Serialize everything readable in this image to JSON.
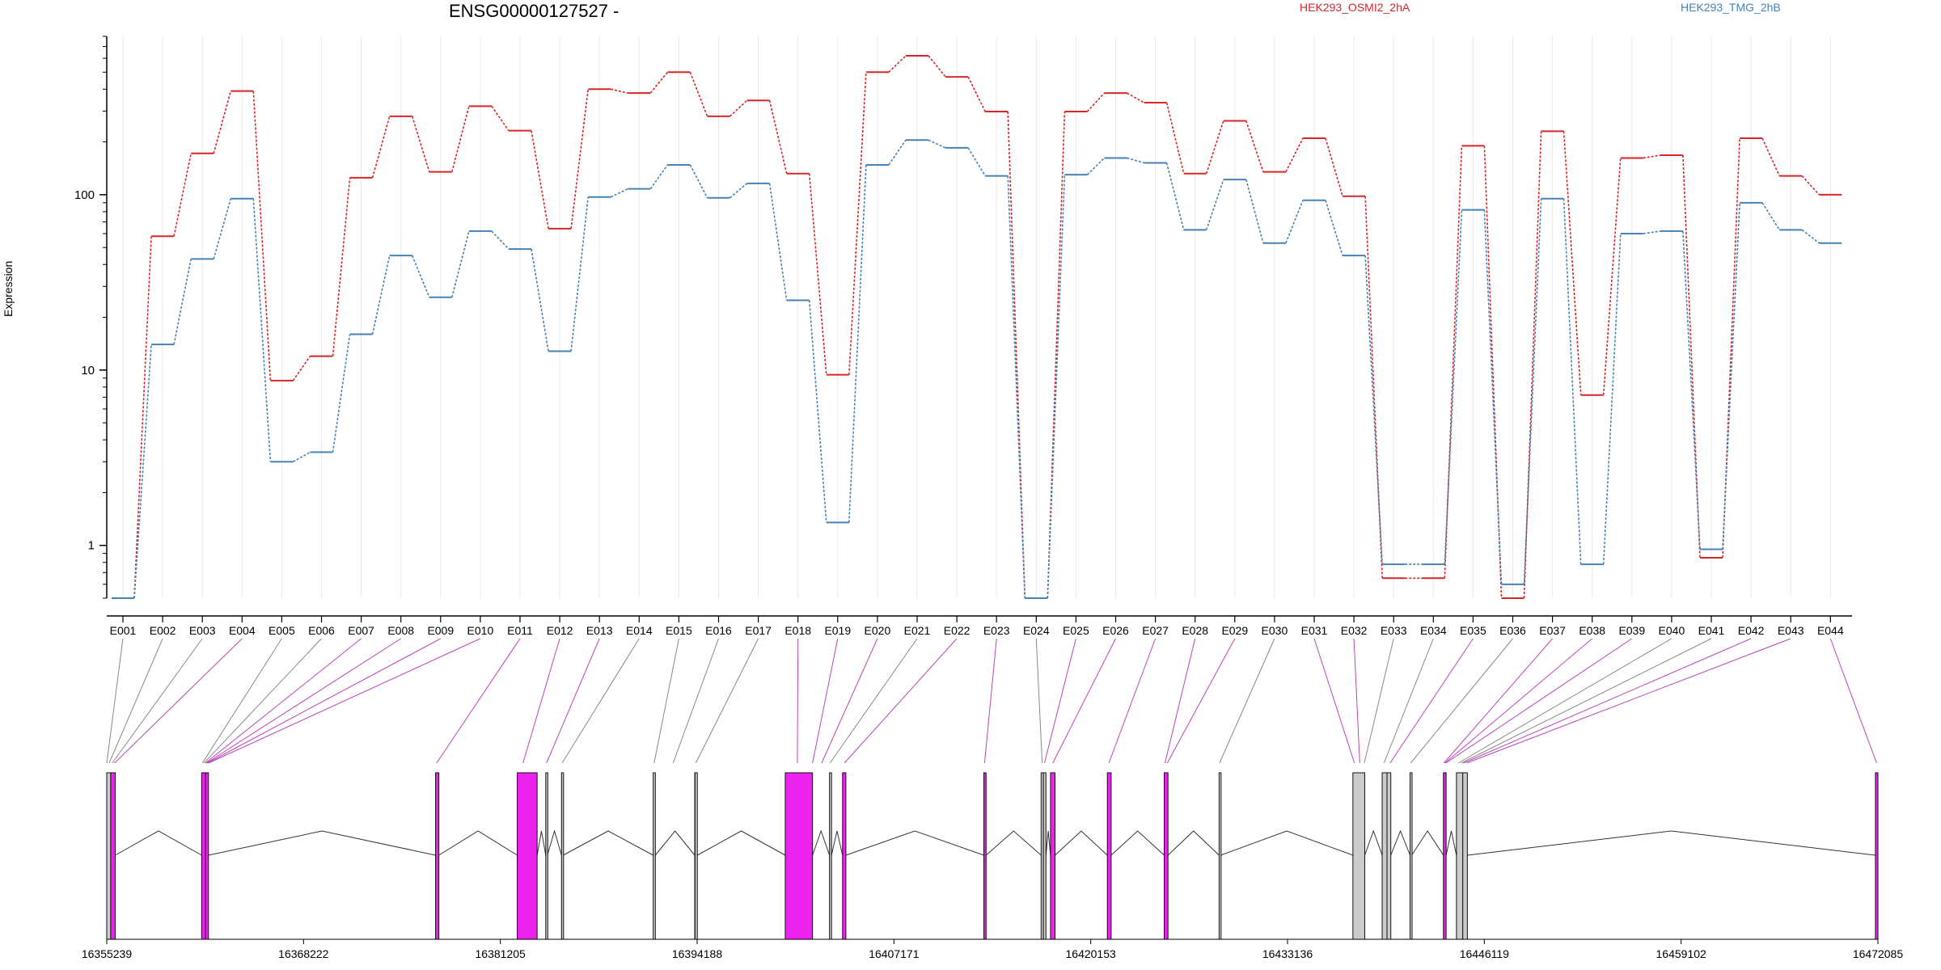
{
  "chart_data": {
    "type": "line",
    "title": "ENSG00000127527 -",
    "ylabel": "Expression",
    "xlabel": "",
    "yscale": "log",
    "ylim": [
      0.5,
      800
    ],
    "yticks": [
      1,
      10,
      100
    ],
    "ytick_labels": [
      "1",
      "10",
      "100"
    ],
    "grid": "vertical",
    "legend": "top-right",
    "categories": [
      "E001",
      "E002",
      "E003",
      "E004",
      "E005",
      "E006",
      "E007",
      "E008",
      "E009",
      "E010",
      "E011",
      "E012",
      "E013",
      "E014",
      "E015",
      "E016",
      "E017",
      "E018",
      "E019",
      "E020",
      "E021",
      "E022",
      "E023",
      "E024",
      "E025",
      "E026",
      "E027",
      "E028",
      "E029",
      "E030",
      "E031",
      "E032",
      "E033",
      "E034",
      "E035",
      "E036",
      "E037",
      "E038",
      "E039",
      "E040",
      "E041",
      "E042",
      "E043",
      "E044"
    ],
    "series": [
      {
        "name": "HEK293_OSMI2_2hA",
        "color": "#d62728",
        "values": [
          0.5,
          58,
          172,
          390,
          8.7,
          12,
          125,
          280,
          135,
          320,
          232,
          64,
          400,
          380,
          500,
          280,
          345,
          132,
          9.4,
          500,
          620,
          470,
          298,
          0.5,
          298,
          380,
          335,
          132,
          264,
          135,
          210,
          98,
          0.65,
          0.65,
          190,
          0.5,
          230,
          7.2,
          162,
          168,
          0.85,
          210,
          128,
          100
        ]
      },
      {
        "name": "HEK293_TMG_2hB",
        "color": "#4682b4",
        "values": [
          0.5,
          14,
          43,
          95,
          3,
          3.4,
          16,
          45,
          26,
          62,
          49,
          12.8,
          97,
          108,
          148,
          96,
          116,
          25,
          1.35,
          148,
          205,
          185,
          128,
          0.5,
          130,
          162,
          152,
          63,
          122,
          53,
          93,
          45,
          0.78,
          0.78,
          82,
          0.6,
          95,
          0.78,
          60,
          62,
          0.95,
          90,
          63,
          53
        ]
      }
    ],
    "gene_model": {
      "coord_ticks": [
        16355239,
        16368222,
        16381205,
        16394188,
        16407171,
        16420153,
        16433136,
        16446119,
        16459102,
        16472085
      ],
      "coord_tick_labels": [
        "16355239",
        "16368222",
        "16381205",
        "16394188",
        "16407171",
        "16420153",
        "16433136",
        "16446119",
        "16459102",
        "16472085"
      ],
      "range": [
        16355239,
        16472085
      ],
      "exons": [
        {
          "start": 16355239,
          "end": 16355500,
          "type": "gray"
        },
        {
          "start": 16355500,
          "end": 16355800,
          "type": "pink"
        },
        {
          "start": 16361500,
          "end": 16361750,
          "type": "pink"
        },
        {
          "start": 16361750,
          "end": 16361950,
          "type": "pink"
        },
        {
          "start": 16376930,
          "end": 16377150,
          "type": "pink"
        },
        {
          "start": 16382320,
          "end": 16383630,
          "type": "pink"
        },
        {
          "start": 16384200,
          "end": 16384310,
          "type": "gray"
        },
        {
          "start": 16385240,
          "end": 16385320,
          "type": "gray"
        },
        {
          "start": 16391290,
          "end": 16391430,
          "type": "gray"
        },
        {
          "start": 16394030,
          "end": 16394110,
          "type": "gray"
        },
        {
          "start": 16394050,
          "end": 16394200,
          "type": "gray"
        },
        {
          "start": 16400000,
          "end": 16401800,
          "type": "pink"
        },
        {
          "start": 16402920,
          "end": 16403050,
          "type": "gray"
        },
        {
          "start": 16403780,
          "end": 16404000,
          "type": "pink"
        },
        {
          "start": 16413100,
          "end": 16413250,
          "type": "pink"
        },
        {
          "start": 16416880,
          "end": 16417030,
          "type": "gray"
        },
        {
          "start": 16417030,
          "end": 16417200,
          "type": "gray"
        },
        {
          "start": 16417500,
          "end": 16417800,
          "type": "pink"
        },
        {
          "start": 16421250,
          "end": 16421500,
          "type": "pink"
        },
        {
          "start": 16425000,
          "end": 16425250,
          "type": "pink"
        },
        {
          "start": 16428620,
          "end": 16428700,
          "type": "gray"
        },
        {
          "start": 16437450,
          "end": 16438230,
          "type": "gray"
        },
        {
          "start": 16439380,
          "end": 16439700,
          "type": "gray"
        },
        {
          "start": 16439700,
          "end": 16439950,
          "type": "gray"
        },
        {
          "start": 16441220,
          "end": 16441300,
          "type": "gray"
        },
        {
          "start": 16443420,
          "end": 16443600,
          "type": "pink"
        },
        {
          "start": 16444280,
          "end": 16444700,
          "type": "gray"
        },
        {
          "start": 16444700,
          "end": 16445000,
          "type": "gray"
        },
        {
          "start": 16471920,
          "end": 16472085,
          "type": "pink"
        }
      ],
      "connectors": [
        {
          "exon": "E001",
          "pos": 16355239,
          "type": "gray"
        },
        {
          "exon": "E002",
          "pos": 16355400,
          "type": "gray"
        },
        {
          "exon": "E003",
          "pos": 16355600,
          "type": "gray"
        },
        {
          "exon": "E004",
          "pos": 16355750,
          "type": "pink"
        },
        {
          "exon": "E005",
          "pos": 16361550,
          "type": "gray"
        },
        {
          "exon": "E006",
          "pos": 16361650,
          "type": "gray"
        },
        {
          "exon": "E007",
          "pos": 16361750,
          "type": "pink"
        },
        {
          "exon": "E008",
          "pos": 16361820,
          "type": "pink"
        },
        {
          "exon": "E009",
          "pos": 16361880,
          "type": "pink"
        },
        {
          "exon": "E010",
          "pos": 16361950,
          "type": "pink"
        },
        {
          "exon": "E011",
          "pos": 16377000,
          "type": "pink"
        },
        {
          "exon": "E012",
          "pos": 16382700,
          "type": "pink"
        },
        {
          "exon": "E013",
          "pos": 16384250,
          "type": "pink"
        },
        {
          "exon": "E014",
          "pos": 16385280,
          "type": "gray"
        },
        {
          "exon": "E015",
          "pos": 16391350,
          "type": "gray"
        },
        {
          "exon": "E016",
          "pos": 16392600,
          "type": "gray"
        },
        {
          "exon": "E017",
          "pos": 16394100,
          "type": "gray"
        },
        {
          "exon": "E018",
          "pos": 16400800,
          "type": "pink"
        },
        {
          "exon": "E019",
          "pos": 16401800,
          "type": "pink"
        },
        {
          "exon": "E020",
          "pos": 16402400,
          "type": "pink"
        },
        {
          "exon": "E021",
          "pos": 16402950,
          "type": "gray"
        },
        {
          "exon": "E022",
          "pos": 16403900,
          "type": "pink"
        },
        {
          "exon": "E023",
          "pos": 16413150,
          "type": "pink"
        },
        {
          "exon": "E024",
          "pos": 16416950,
          "type": "gray"
        },
        {
          "exon": "E025",
          "pos": 16417100,
          "type": "pink"
        },
        {
          "exon": "E026",
          "pos": 16417650,
          "type": "pink"
        },
        {
          "exon": "E027",
          "pos": 16421350,
          "type": "pink"
        },
        {
          "exon": "E028",
          "pos": 16425050,
          "type": "pink"
        },
        {
          "exon": "E029",
          "pos": 16425200,
          "type": "pink"
        },
        {
          "exon": "E030",
          "pos": 16428650,
          "type": "gray"
        },
        {
          "exon": "E031",
          "pos": 16437550,
          "type": "pink"
        },
        {
          "exon": "E032",
          "pos": 16437900,
          "type": "pink"
        },
        {
          "exon": "E033",
          "pos": 16438200,
          "type": "gray"
        },
        {
          "exon": "E034",
          "pos": 16439500,
          "type": "gray"
        },
        {
          "exon": "E035",
          "pos": 16439900,
          "type": "pink"
        },
        {
          "exon": "E036",
          "pos": 16441260,
          "type": "gray"
        },
        {
          "exon": "E037",
          "pos": 16443450,
          "type": "pink"
        },
        {
          "exon": "E038",
          "pos": 16443520,
          "type": "pink"
        },
        {
          "exon": "E039",
          "pos": 16443580,
          "type": "pink"
        },
        {
          "exon": "E040",
          "pos": 16444400,
          "type": "gray"
        },
        {
          "exon": "E041",
          "pos": 16444600,
          "type": "gray"
        },
        {
          "exon": "E042",
          "pos": 16444750,
          "type": "pink"
        },
        {
          "exon": "E043",
          "pos": 16444950,
          "type": "pink"
        },
        {
          "exon": "E044",
          "pos": 16472000,
          "type": "pink"
        }
      ]
    }
  }
}
